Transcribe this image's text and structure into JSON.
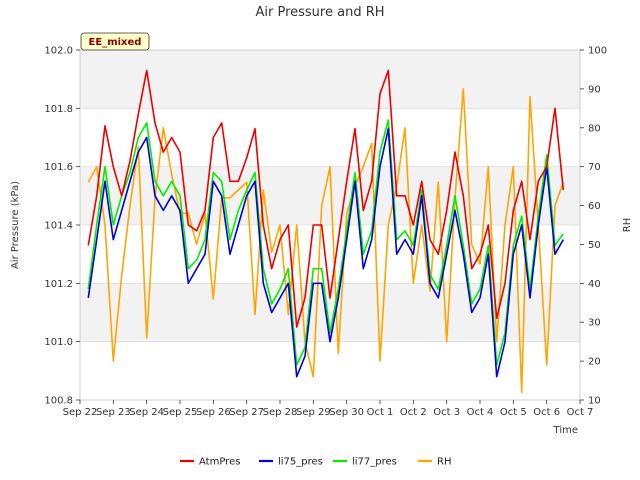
{
  "chart_data": {
    "type": "line",
    "title": "Air Pressure and RH",
    "xlabel": "Time",
    "ylabel": "Air Pressure (kPa)",
    "y2label": "RH",
    "badge": "EE_mixed",
    "colors": {
      "AtmPres": "#ee0000",
      "li75_pres": "#0000dd",
      "li77_pres": "#00ee00",
      "RH": "#ffa500",
      "band": "#f2f2f2",
      "badge_bg": "#ffffcc"
    },
    "xlim": [
      "2023-09-22",
      "2023-10-07"
    ],
    "ylim": [
      100.8,
      102.0
    ],
    "y2lim": [
      10,
      100
    ],
    "grid": true,
    "legend_position": "bottom",
    "x_ticks": [
      {
        "date": "2023-09-22",
        "label": "Sep 22"
      },
      {
        "date": "2023-09-23",
        "label": "Sep 23"
      },
      {
        "date": "2023-09-24",
        "label": "Sep 24"
      },
      {
        "date": "2023-09-25",
        "label": "Sep 25"
      },
      {
        "date": "2023-09-26",
        "label": "Sep 26"
      },
      {
        "date": "2023-09-27",
        "label": "Sep 27"
      },
      {
        "date": "2023-09-28",
        "label": "Sep 28"
      },
      {
        "date": "2023-09-29",
        "label": "Sep 29"
      },
      {
        "date": "2023-09-30",
        "label": "Sep 30"
      },
      {
        "date": "2023-10-01",
        "label": "Oct 1"
      },
      {
        "date": "2023-10-02",
        "label": "Oct 2"
      },
      {
        "date": "2023-10-03",
        "label": "Oct 3"
      },
      {
        "date": "2023-10-04",
        "label": "Oct 4"
      },
      {
        "date": "2023-10-05",
        "label": "Oct 5"
      },
      {
        "date": "2023-10-06",
        "label": "Oct 6"
      },
      {
        "date": "2023-10-07",
        "label": "Oct 7"
      }
    ],
    "y_ticks": [
      {
        "value": 100.8,
        "label": "100.8"
      },
      {
        "value": 101.0,
        "label": "101.0"
      },
      {
        "value": 101.2,
        "label": "101.2"
      },
      {
        "value": 101.4,
        "label": "101.4"
      },
      {
        "value": 101.6,
        "label": "101.6"
      },
      {
        "value": 101.8,
        "label": "101.8"
      },
      {
        "value": 102.0,
        "label": "102.0"
      }
    ],
    "y2_ticks": [
      {
        "value": 10,
        "label": "10"
      },
      {
        "value": 20,
        "label": "20"
      },
      {
        "value": 30,
        "label": "30"
      },
      {
        "value": 40,
        "label": "40"
      },
      {
        "value": 50,
        "label": "50"
      },
      {
        "value": 60,
        "label": "60"
      },
      {
        "value": 70,
        "label": "70"
      },
      {
        "value": 80,
        "label": "80"
      },
      {
        "value": 90,
        "label": "90"
      },
      {
        "value": 100,
        "label": "100"
      }
    ],
    "series": [
      {
        "name": "AtmPres",
        "axis": "left",
        "x": [
          "2023-09-22 06:00",
          "2023-09-22 12:00",
          "2023-09-22 18:00",
          "2023-09-23 00:00",
          "2023-09-23 06:00",
          "2023-09-23 12:00",
          "2023-09-23 18:00",
          "2023-09-24 00:00",
          "2023-09-24 06:00",
          "2023-09-24 12:00",
          "2023-09-24 18:00",
          "2023-09-25 00:00",
          "2023-09-25 06:00",
          "2023-09-25 12:00",
          "2023-09-25 18:00",
          "2023-09-26 00:00",
          "2023-09-26 06:00",
          "2023-09-26 12:00",
          "2023-09-26 18:00",
          "2023-09-27 00:00",
          "2023-09-27 06:00",
          "2023-09-27 12:00",
          "2023-09-27 18:00",
          "2023-09-28 00:00",
          "2023-09-28 06:00",
          "2023-09-28 12:00",
          "2023-09-28 18:00",
          "2023-09-29 00:00",
          "2023-09-29 06:00",
          "2023-09-29 12:00",
          "2023-09-29 18:00",
          "2023-09-30 00:00",
          "2023-09-30 06:00",
          "2023-09-30 12:00",
          "2023-09-30 18:00",
          "2023-10-01 00:00",
          "2023-10-01 06:00",
          "2023-10-01 12:00",
          "2023-10-01 18:00",
          "2023-10-02 00:00",
          "2023-10-02 06:00",
          "2023-10-02 12:00",
          "2023-10-02 18:00",
          "2023-10-03 00:00",
          "2023-10-03 06:00",
          "2023-10-03 12:00",
          "2023-10-03 18:00",
          "2023-10-04 00:00",
          "2023-10-04 06:00",
          "2023-10-04 12:00",
          "2023-10-04 18:00",
          "2023-10-05 00:00",
          "2023-10-05 06:00",
          "2023-10-05 12:00",
          "2023-10-05 18:00",
          "2023-10-06 00:00",
          "2023-10-06 06:00",
          "2023-10-06 12:00"
        ],
        "y": [
          101.33,
          101.5,
          101.74,
          101.6,
          101.5,
          101.62,
          101.78,
          101.93,
          101.75,
          101.65,
          101.7,
          101.65,
          101.4,
          101.38,
          101.45,
          101.7,
          101.75,
          101.55,
          101.55,
          101.63,
          101.73,
          101.4,
          101.25,
          101.35,
          101.4,
          101.05,
          101.15,
          101.4,
          101.4,
          101.15,
          101.35,
          101.55,
          101.73,
          101.45,
          101.55,
          101.85,
          101.93,
          101.5,
          101.5,
          101.4,
          101.55,
          101.35,
          101.3,
          101.45,
          101.65,
          101.5,
          101.25,
          101.3,
          101.4,
          101.08,
          101.2,
          101.45,
          101.55,
          101.35,
          101.55,
          101.6,
          101.8,
          101.52
        ]
      },
      {
        "name": "li75_pres",
        "axis": "left",
        "x": [
          "2023-09-22 06:00",
          "2023-09-22 12:00",
          "2023-09-22 18:00",
          "2023-09-23 00:00",
          "2023-09-23 06:00",
          "2023-09-23 12:00",
          "2023-09-23 18:00",
          "2023-09-24 00:00",
          "2023-09-24 06:00",
          "2023-09-24 12:00",
          "2023-09-24 18:00",
          "2023-09-25 00:00",
          "2023-09-25 06:00",
          "2023-09-25 12:00",
          "2023-09-25 18:00",
          "2023-09-26 00:00",
          "2023-09-26 06:00",
          "2023-09-26 12:00",
          "2023-09-26 18:00",
          "2023-09-27 00:00",
          "2023-09-27 06:00",
          "2023-09-27 12:00",
          "2023-09-27 18:00",
          "2023-09-28 00:00",
          "2023-09-28 06:00",
          "2023-09-28 12:00",
          "2023-09-28 18:00",
          "2023-09-29 00:00",
          "2023-09-29 06:00",
          "2023-09-29 12:00",
          "2023-09-29 18:00",
          "2023-09-30 00:00",
          "2023-09-30 06:00",
          "2023-09-30 12:00",
          "2023-09-30 18:00",
          "2023-10-01 00:00",
          "2023-10-01 06:00",
          "2023-10-01 12:00",
          "2023-10-01 18:00",
          "2023-10-02 00:00",
          "2023-10-02 06:00",
          "2023-10-02 12:00",
          "2023-10-02 18:00",
          "2023-10-03 00:00",
          "2023-10-03 06:00",
          "2023-10-03 12:00",
          "2023-10-03 18:00",
          "2023-10-04 00:00",
          "2023-10-04 06:00",
          "2023-10-04 12:00",
          "2023-10-04 18:00",
          "2023-10-05 00:00",
          "2023-10-05 06:00",
          "2023-10-05 12:00",
          "2023-10-05 18:00",
          "2023-10-06 00:00",
          "2023-10-06 06:00",
          "2023-10-06 12:00"
        ],
        "y": [
          101.15,
          101.35,
          101.55,
          101.35,
          101.45,
          101.55,
          101.65,
          101.7,
          101.5,
          101.45,
          101.5,
          101.45,
          101.2,
          101.25,
          101.3,
          101.55,
          101.5,
          101.3,
          101.4,
          101.5,
          101.55,
          101.2,
          101.1,
          101.15,
          101.2,
          100.88,
          100.95,
          101.2,
          101.2,
          101.0,
          101.15,
          101.35,
          101.55,
          101.25,
          101.35,
          101.6,
          101.73,
          101.3,
          101.35,
          101.3,
          101.5,
          101.2,
          101.15,
          101.3,
          101.45,
          101.3,
          101.1,
          101.15,
          101.3,
          100.88,
          101.0,
          101.3,
          101.4,
          101.15,
          101.4,
          101.6,
          101.3,
          101.35
        ]
      },
      {
        "name": "li77_pres",
        "axis": "left",
        "x": [
          "2023-09-22 06:00",
          "2023-09-22 12:00",
          "2023-09-22 18:00",
          "2023-09-23 00:00",
          "2023-09-23 06:00",
          "2023-09-23 12:00",
          "2023-09-23 18:00",
          "2023-09-24 00:00",
          "2023-09-24 06:00",
          "2023-09-24 12:00",
          "2023-09-24 18:00",
          "2023-09-25 00:00",
          "2023-09-25 06:00",
          "2023-09-25 12:00",
          "2023-09-25 18:00",
          "2023-09-26 00:00",
          "2023-09-26 06:00",
          "2023-09-26 12:00",
          "2023-09-26 18:00",
          "2023-09-27 00:00",
          "2023-09-27 06:00",
          "2023-09-27 12:00",
          "2023-09-27 18:00",
          "2023-09-28 00:00",
          "2023-09-28 06:00",
          "2023-09-28 12:00",
          "2023-09-28 18:00",
          "2023-09-29 00:00",
          "2023-09-29 06:00",
          "2023-09-29 12:00",
          "2023-09-29 18:00",
          "2023-09-30 00:00",
          "2023-09-30 06:00",
          "2023-09-30 12:00",
          "2023-09-30 18:00",
          "2023-10-01 00:00",
          "2023-10-01 06:00",
          "2023-10-01 12:00",
          "2023-10-01 18:00",
          "2023-10-02 00:00",
          "2023-10-02 06:00",
          "2023-10-02 12:00",
          "2023-10-02 18:00",
          "2023-10-03 00:00",
          "2023-10-03 06:00",
          "2023-10-03 12:00",
          "2023-10-03 18:00",
          "2023-10-04 00:00",
          "2023-10-04 06:00",
          "2023-10-04 12:00",
          "2023-10-04 18:00",
          "2023-10-05 00:00",
          "2023-10-05 06:00",
          "2023-10-05 12:00",
          "2023-10-05 18:00",
          "2023-10-06 00:00",
          "2023-10-06 06:00",
          "2023-10-06 12:00"
        ],
        "y": [
          101.18,
          101.4,
          101.6,
          101.4,
          101.5,
          101.58,
          101.7,
          101.75,
          101.55,
          101.5,
          101.55,
          101.5,
          101.25,
          101.28,
          101.35,
          101.58,
          101.55,
          101.35,
          101.45,
          101.52,
          101.58,
          101.25,
          101.13,
          101.18,
          101.25,
          100.92,
          100.98,
          101.25,
          101.25,
          101.03,
          101.18,
          101.38,
          101.58,
          101.3,
          101.38,
          101.65,
          101.76,
          101.35,
          101.38,
          101.33,
          101.52,
          101.23,
          101.18,
          101.33,
          101.5,
          101.33,
          101.13,
          101.18,
          101.33,
          100.92,
          101.03,
          101.33,
          101.43,
          101.18,
          101.43,
          101.64,
          101.33,
          101.37
        ]
      },
      {
        "name": "RH",
        "axis": "right",
        "x": [
          "2023-09-22 06:00",
          "2023-09-22 12:00",
          "2023-09-22 18:00",
          "2023-09-23 00:00",
          "2023-09-23 06:00",
          "2023-09-23 12:00",
          "2023-09-23 18:00",
          "2023-09-24 00:00",
          "2023-09-24 06:00",
          "2023-09-24 12:00",
          "2023-09-24 18:00",
          "2023-09-25 00:00",
          "2023-09-25 06:00",
          "2023-09-25 12:00",
          "2023-09-25 18:00",
          "2023-09-26 00:00",
          "2023-09-26 06:00",
          "2023-09-26 12:00",
          "2023-09-26 18:00",
          "2023-09-27 00:00",
          "2023-09-27 06:00",
          "2023-09-27 12:00",
          "2023-09-27 18:00",
          "2023-09-28 00:00",
          "2023-09-28 06:00",
          "2023-09-28 12:00",
          "2023-09-28 18:00",
          "2023-09-29 00:00",
          "2023-09-29 06:00",
          "2023-09-29 12:00",
          "2023-09-29 18:00",
          "2023-09-30 00:00",
          "2023-09-30 06:00",
          "2023-09-30 12:00",
          "2023-09-30 18:00",
          "2023-10-01 00:00",
          "2023-10-01 06:00",
          "2023-10-01 12:00",
          "2023-10-01 18:00",
          "2023-10-02 00:00",
          "2023-10-02 06:00",
          "2023-10-02 12:00",
          "2023-10-02 18:00",
          "2023-10-03 00:00",
          "2023-10-03 06:00",
          "2023-10-03 12:00",
          "2023-10-03 18:00",
          "2023-10-04 00:00",
          "2023-10-04 06:00",
          "2023-10-04 12:00",
          "2023-10-04 18:00",
          "2023-10-05 00:00",
          "2023-10-05 06:00",
          "2023-10-05 12:00",
          "2023-10-05 18:00",
          "2023-10-06 00:00",
          "2023-10-06 06:00",
          "2023-10-06 12:00"
        ],
        "y": [
          66,
          70,
          55,
          20,
          42,
          60,
          75,
          26,
          62,
          80,
          68,
          58,
          58,
          50,
          58,
          36,
          62,
          62,
          64,
          66,
          32,
          64,
          48,
          55,
          32,
          55,
          25,
          16,
          60,
          70,
          22,
          58,
          65,
          70,
          76,
          20,
          55,
          65,
          80,
          40,
          55,
          38,
          66,
          25,
          62,
          90,
          50,
          45,
          70,
          25,
          55,
          70,
          12,
          88,
          55,
          19,
          60,
          66
        ]
      }
    ]
  }
}
